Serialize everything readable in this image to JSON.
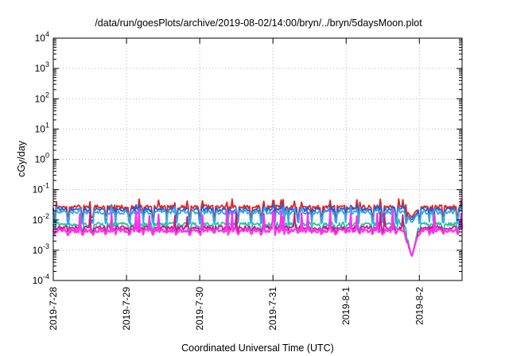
{
  "chart_data": {
    "type": "line",
    "title": "/data/run/goesPlots/archive/2019-08-02/14:00/bryn/../bryn/5daysMoon.plot",
    "xlabel": "Coordinated Universal Time (UTC)",
    "ylabel": "cGy/day",
    "y_scale": "log",
    "ylim_exponents": [
      -4,
      4
    ],
    "y_ticks": [
      {
        "base": "10",
        "exp": "4"
      },
      {
        "base": "10",
        "exp": "3"
      },
      {
        "base": "10",
        "exp": "2"
      },
      {
        "base": "10",
        "exp": "1"
      },
      {
        "base": "10",
        "exp": "0"
      },
      {
        "base": "10",
        "exp": "-1"
      },
      {
        "base": "10",
        "exp": "-2"
      },
      {
        "base": "10",
        "exp": "-3"
      },
      {
        "base": "10",
        "exp": "-4"
      }
    ],
    "x_range": [
      "2019-07-28T00:00",
      "2019-08-02T14:00"
    ],
    "x_ticks": [
      "2019-7-28",
      "2019-7-29",
      "2019-7-30",
      "2019-7-31",
      "2019-8-1",
      "2019-8-2"
    ],
    "grid": true,
    "series": [
      {
        "color": "#e8201c",
        "base": 0.027,
        "dip_to": 0.013,
        "spike_to": 0.05
      },
      {
        "color": "#1e60d8",
        "base": 0.022,
        "dip_to": 0.009,
        "spike_to": 0.035
      },
      {
        "color": "#37a8e8",
        "base": 0.018,
        "dip_to": 0.008,
        "spike_to": 0.028
      },
      {
        "color": "#20c8a0",
        "base": 0.0072,
        "dip_to": 0.0048,
        "spike_to": 0.012
      },
      {
        "color": "#d0148c",
        "base": 0.0055,
        "dip_to": 0.004,
        "spike_to": 0.02
      },
      {
        "color": "#ff30f0",
        "base": 0.0045,
        "dip_to": 0.0035,
        "spike_to": 0.022
      }
    ],
    "event": {
      "at": "2019-08-01T21:30",
      "min_value": 0.0006
    }
  }
}
